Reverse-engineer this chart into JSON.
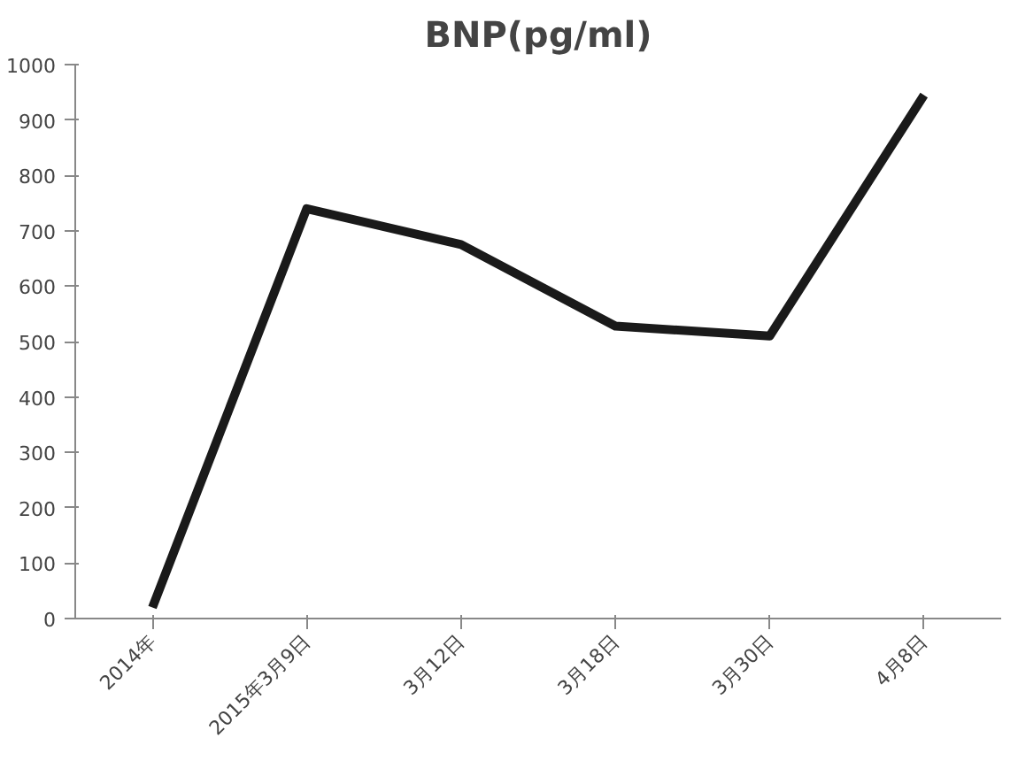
{
  "chart_data": {
    "type": "line",
    "title": "BNP(pg/ml)",
    "categories": [
      "2014年",
      "2015年3月9日",
      "3月12日",
      "3月18日",
      "3月30日",
      "4月8日"
    ],
    "series": [
      {
        "color": "#1a1a1a",
        "values": [
          20,
          740,
          675,
          528,
          510,
          945
        ]
      }
    ],
    "ylim": [
      0,
      1000
    ],
    "yticks": [
      0,
      100,
      200,
      300,
      400,
      500,
      600,
      700,
      800,
      900,
      1000
    ],
    "grid": false,
    "marker": "none",
    "line_style": "solid"
  }
}
